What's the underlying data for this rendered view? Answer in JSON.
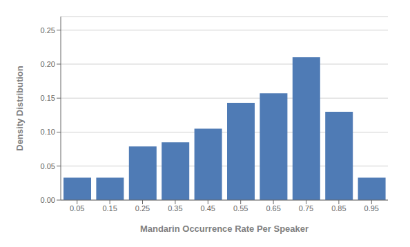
{
  "chart_data": {
    "type": "bar",
    "x": [
      0.05,
      0.15,
      0.25,
      0.35,
      0.45,
      0.55,
      0.65,
      0.75,
      0.85,
      0.95
    ],
    "values": [
      0.033,
      0.033,
      0.079,
      0.085,
      0.105,
      0.143,
      0.157,
      0.21,
      0.13,
      0.033
    ],
    "color": "#4f7bb5",
    "xlabel": "Mandarin Occurrence Rate Per Speaker",
    "ylabel": "Density Distribution",
    "xlim": [
      0.0,
      1.0
    ],
    "xticks": [
      0.05,
      0.15,
      0.25,
      0.35,
      0.45,
      0.55,
      0.65,
      0.75,
      0.85,
      0.95
    ],
    "ylim": [
      0,
      0.27
    ],
    "yticks": [
      {
        "value": 0,
        "label": "0.00"
      },
      0.05,
      {
        "value": 0.1,
        "label": "0.10"
      },
      0.15,
      {
        "value": 0.2,
        "label": "0.20"
      },
      0.25
    ],
    "grid": true
  }
}
